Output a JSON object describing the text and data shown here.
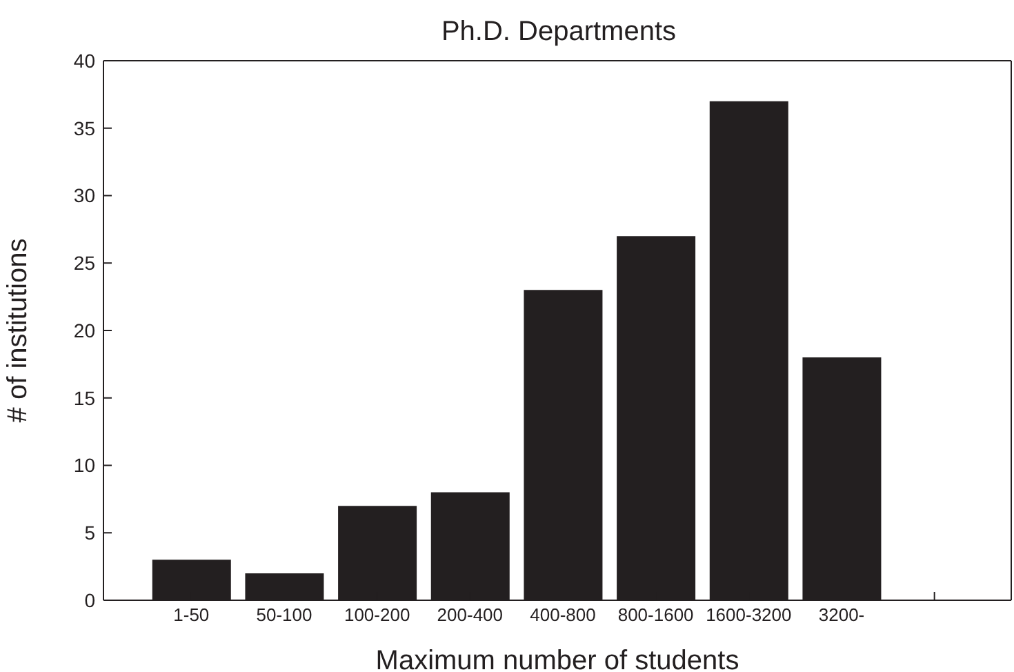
{
  "chart_data": {
    "type": "bar",
    "title": "Ph.D. Departments",
    "xlabel": "Maximum number of students",
    "ylabel": "# of institutions",
    "categories": [
      "1-50",
      "50-100",
      "100-200",
      "200-400",
      "400-800",
      "800-1600",
      "1600-3200",
      "3200-",
      null
    ],
    "values": [
      3,
      2,
      7,
      8,
      23,
      27,
      37,
      18,
      null
    ],
    "color": "#231f20",
    "ylim": [
      0,
      40
    ],
    "yticks": [
      0,
      5,
      10,
      15,
      20,
      25,
      30,
      35,
      40
    ]
  }
}
